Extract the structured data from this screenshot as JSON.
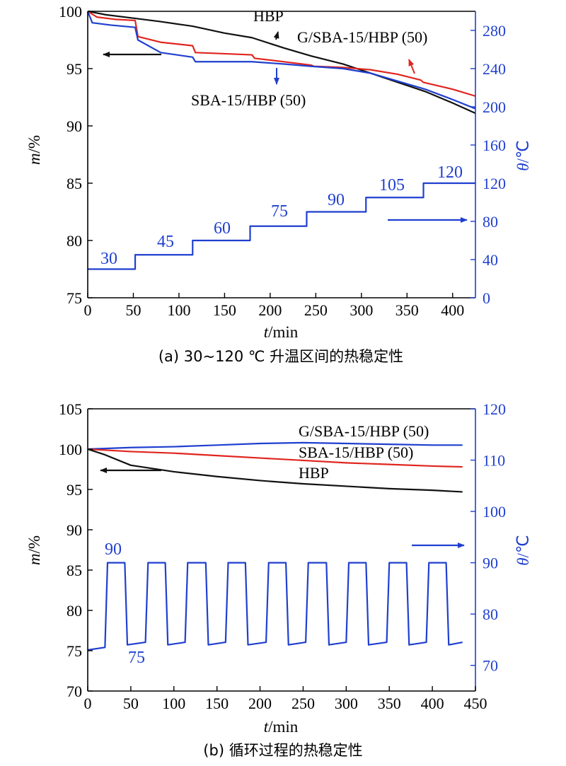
{
  "chart_data": [
    {
      "id": "a",
      "type": "line",
      "caption": "(a) 30~120 ℃ 升温区间的热稳定性",
      "xlabel": {
        "var": "t",
        "unit": "/min"
      },
      "ylabel_left": {
        "var": "m",
        "unit": "/%"
      },
      "ylabel_right": {
        "var": "θ",
        "unit": "/℃"
      },
      "xlim": [
        0,
        425
      ],
      "ylim_left": [
        75,
        100
      ],
      "ylim_right": [
        0,
        300
      ],
      "xticks": [
        0,
        50,
        100,
        150,
        200,
        250,
        300,
        350,
        400
      ],
      "yticks_left": [
        75,
        80,
        85,
        90,
        95,
        100
      ],
      "yticks_right": [
        0,
        40,
        80,
        120,
        160,
        200,
        240,
        280
      ],
      "grid": false,
      "colors": {
        "black": "#111111",
        "red": "#e0251f",
        "blue": "#1f3fcf"
      },
      "series": [
        {
          "name": "HBP",
          "axis": "left",
          "color": "#111111",
          "x": [
            0,
            20,
            50,
            80,
            115,
            150,
            180,
            215,
            245,
            280,
            310,
            340,
            370,
            400,
            425
          ],
          "y": [
            100,
            99.7,
            99.4,
            99.1,
            98.7,
            98.1,
            97.7,
            96.8,
            96.1,
            95.4,
            94.6,
            93.8,
            93.0,
            92.0,
            91.1
          ]
        },
        {
          "name": "G/SBA-15/HBP (50)",
          "axis": "left",
          "color": "#e0251f",
          "x": [
            0,
            10,
            30,
            52,
            55,
            80,
            115,
            118,
            150,
            180,
            183,
            215,
            245,
            248,
            280,
            310,
            340,
            365,
            368,
            400,
            425
          ],
          "y": [
            100,
            99.5,
            99.3,
            99.2,
            97.8,
            97.3,
            97.0,
            96.4,
            96.3,
            96.2,
            95.9,
            95.6,
            95.3,
            95.2,
            95.1,
            94.9,
            94.5,
            94.0,
            93.8,
            93.2,
            92.6
          ]
        },
        {
          "name": "SBA-15/HBP (50)",
          "axis": "left",
          "color": "#1f3fcf",
          "x": [
            0,
            5,
            25,
            52,
            55,
            80,
            115,
            118,
            150,
            180,
            215,
            245,
            280,
            310,
            340,
            370,
            400,
            425
          ],
          "y": [
            100,
            99.0,
            98.8,
            98.6,
            97.5,
            96.4,
            96.0,
            95.6,
            95.6,
            95.6,
            95.4,
            95.2,
            95.0,
            94.6,
            93.9,
            93.2,
            92.3,
            91.5
          ]
        },
        {
          "name": "temperature",
          "axis": "right",
          "color": "#1f3fcf",
          "step": true,
          "x": [
            0,
            52,
            115,
            178,
            240,
            305,
            368,
            425
          ],
          "y": [
            30,
            45,
            60,
            75,
            90,
            105,
            120,
            120
          ]
        }
      ],
      "annotations": {
        "curve_labels": [
          "HBP",
          "G/SBA-15/HBP (50)",
          "SBA-15/HBP (50)"
        ],
        "temp_labels": [
          "30",
          "45",
          "60",
          "75",
          "90",
          "105",
          "120"
        ]
      }
    },
    {
      "id": "b",
      "type": "line",
      "caption": "(b) 循环过程的热稳定性",
      "xlabel": {
        "var": "t",
        "unit": "/min"
      },
      "ylabel_left": {
        "var": "m",
        "unit": "/%"
      },
      "ylabel_right": {
        "var": "θ",
        "unit": "/℃"
      },
      "xlim": [
        0,
        450
      ],
      "ylim_left": [
        70,
        105
      ],
      "ylim_right": [
        65,
        120
      ],
      "xticks": [
        0,
        50,
        100,
        150,
        200,
        250,
        300,
        350,
        400,
        450
      ],
      "yticks_left": [
        70,
        75,
        80,
        85,
        90,
        95,
        100,
        105
      ],
      "yticks_right": [
        70,
        80,
        90,
        100,
        110,
        120
      ],
      "grid": false,
      "colors": {
        "black": "#111111",
        "red": "#e0251f",
        "blue": "#1f3fcf"
      },
      "series": [
        {
          "name": "G/SBA-15/HBP (50)",
          "axis": "left",
          "color": "#1f3fcf",
          "x": [
            0,
            50,
            100,
            150,
            200,
            250,
            300,
            350,
            400,
            435
          ],
          "y": [
            100,
            100.2,
            100.3,
            100.5,
            100.7,
            100.8,
            100.7,
            100.6,
            100.5,
            100.5
          ]
        },
        {
          "name": "SBA-15/HBP (50)",
          "axis": "left",
          "color": "#e0251f",
          "x": [
            0,
            50,
            100,
            150,
            200,
            250,
            300,
            350,
            400,
            435
          ],
          "y": [
            100,
            99.7,
            99.5,
            99.2,
            98.9,
            98.6,
            98.3,
            98.1,
            97.9,
            97.8
          ]
        },
        {
          "name": "HBP",
          "axis": "left",
          "color": "#111111",
          "x": [
            0,
            20,
            50,
            100,
            150,
            200,
            250,
            300,
            350,
            400,
            435
          ],
          "y": [
            100,
            99.3,
            98.0,
            97.2,
            96.6,
            96.1,
            95.7,
            95.4,
            95.1,
            94.9,
            94.7
          ]
        },
        {
          "name": "temperature",
          "axis": "right",
          "color": "#1f3fcf",
          "x": [
            0,
            20,
            23,
            43,
            46,
            67,
            70,
            90,
            93,
            113,
            116,
            137,
            140,
            160,
            163,
            183,
            186,
            207,
            210,
            230,
            233,
            253,
            256,
            277,
            280,
            300,
            303,
            323,
            326,
            347,
            350,
            370,
            373,
            393,
            396,
            416,
            419,
            435
          ],
          "y": [
            73,
            73.5,
            90,
            90,
            74,
            74.5,
            90,
            90,
            74,
            74.5,
            90,
            90,
            74,
            74.5,
            90,
            90,
            74,
            74.5,
            90,
            90,
            74,
            74.5,
            90,
            90,
            74,
            74.5,
            90,
            90,
            74,
            74.5,
            90,
            90,
            74,
            74.5,
            90,
            90,
            74,
            74.5
          ]
        }
      ],
      "annotations": {
        "curve_labels": [
          "G/SBA-15/HBP (50)",
          "SBA-15/HBP (50)",
          "HBP"
        ],
        "temp_labels": [
          "90",
          "75"
        ]
      }
    }
  ]
}
